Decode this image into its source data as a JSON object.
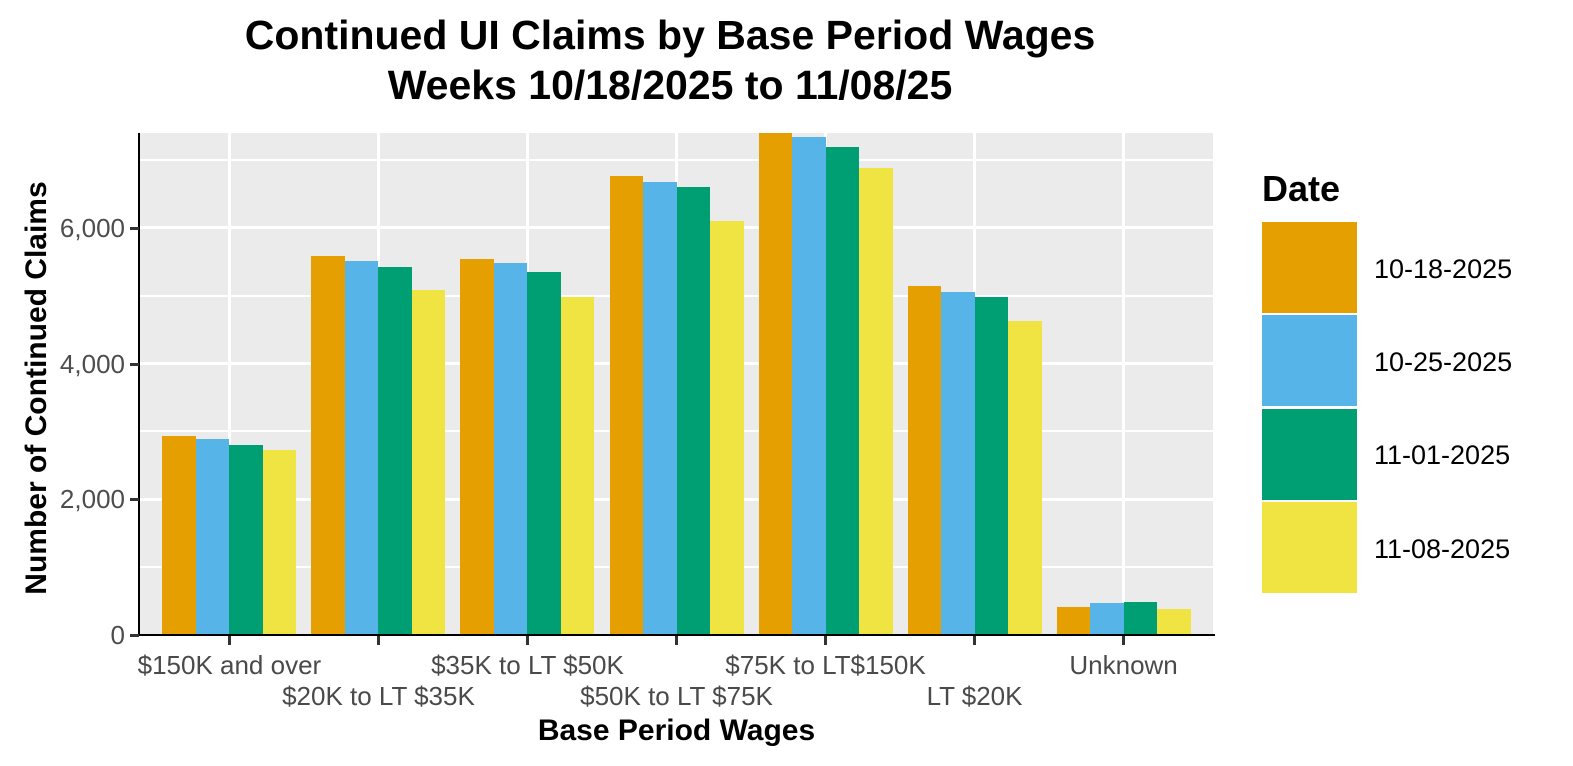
{
  "title": {
    "line1": "Continued UI Claims by Base Period Wages",
    "line2": "Weeks 10/18/2025 to 11/08/25"
  },
  "axes": {
    "y_title": "Number of Continued Claims",
    "x_title": "Base Period Wages",
    "y_ticks": [
      {
        "value": 0,
        "label": "0"
      },
      {
        "value": 2000,
        "label": "2,000"
      },
      {
        "value": 4000,
        "label": "4,000"
      },
      {
        "value": 6000,
        "label": "6,000"
      }
    ],
    "y_minor": [
      1000,
      3000,
      5000,
      7000
    ]
  },
  "legend": {
    "title": "Date",
    "entries": [
      {
        "label": "10-18-2025",
        "color": "#E69F00"
      },
      {
        "label": "10-25-2025",
        "color": "#56B4E9"
      },
      {
        "label": "11-01-2025",
        "color": "#009E73"
      },
      {
        "label": "11-08-2025",
        "color": "#F0E442"
      }
    ]
  },
  "colors": {
    "panel_bg": "#EBEBEB",
    "grid": "#FFFFFF",
    "axis_text": "#4D4D4D",
    "axis_line": "#000000"
  },
  "chart_data": {
    "type": "bar",
    "title": "Continued UI Claims by Base Period Wages",
    "subtitle": "Weeks 10/18/2025 to 11/08/25",
    "xlabel": "Base Period Wages",
    "ylabel": "Number of Continued Claims",
    "ylim": [
      0,
      7400
    ],
    "grid": true,
    "legend_position": "right",
    "legend_title": "Date",
    "categories": [
      "$150K and over",
      "$20K to LT $35K",
      "$35K to LT $50K",
      "$50K to LT $75K",
      "$75K to LT$150K",
      "LT $20K",
      "Unknown"
    ],
    "series": [
      {
        "name": "10-18-2025",
        "color": "#E69F00",
        "values": [
          2930,
          5580,
          5550,
          6760,
          7400,
          5140,
          420
        ]
      },
      {
        "name": "10-25-2025",
        "color": "#56B4E9",
        "values": [
          2890,
          5520,
          5480,
          6680,
          7340,
          5060,
          470
        ]
      },
      {
        "name": "11-01-2025",
        "color": "#009E73",
        "values": [
          2800,
          5420,
          5350,
          6600,
          7200,
          4980,
          480
        ]
      },
      {
        "name": "11-08-2025",
        "color": "#F0E442",
        "values": [
          2730,
          5090,
          4980,
          6110,
          6880,
          4630,
          380
        ]
      }
    ]
  }
}
